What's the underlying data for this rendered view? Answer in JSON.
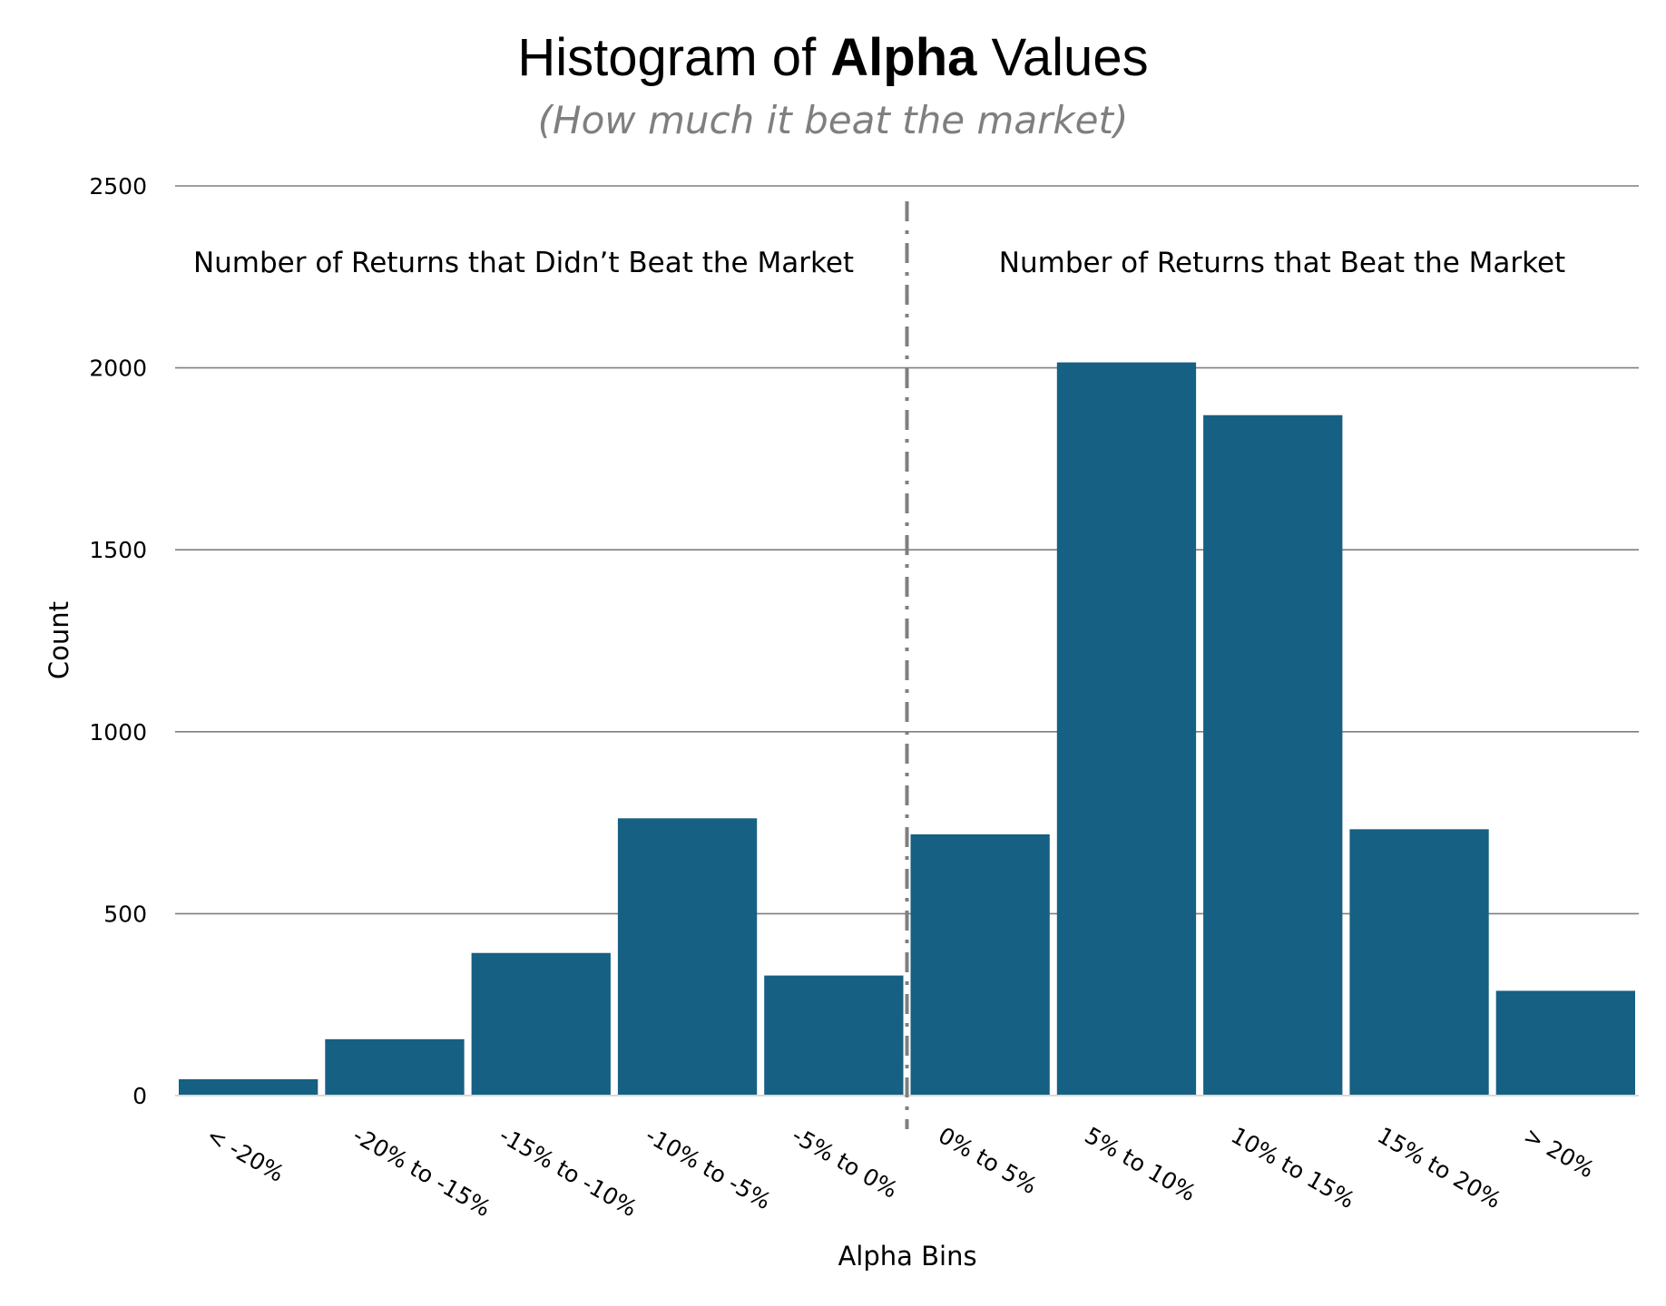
{
  "chart_data": {
    "type": "bar",
    "title_prefix": "Histogram of ",
    "title_bold": "Alpha",
    "title_suffix": " Values",
    "subtitle": "(How much it beat the market)",
    "xlabel": "Alpha Bins",
    "ylabel": "Count",
    "ylim": [
      0,
      2500
    ],
    "yticks": [
      0,
      500,
      1000,
      1500,
      2000,
      2500
    ],
    "grid": true,
    "categories": [
      "< -20%",
      "-20% to -15%",
      "-15% to -10%",
      "-10% to -5%",
      "-5% to 0%",
      "0% to 5%",
      "5% to 10%",
      "10% to 15%",
      "15% to 20%",
      "> 20%"
    ],
    "values": [
      45,
      155,
      392,
      762,
      330,
      718,
      2015,
      1870,
      732,
      288
    ],
    "bar_color": "#166083",
    "divider_after_category": "-5% to 0%",
    "annotations": {
      "left": "Number of Returns that Didn’t Beat the Market",
      "right": "Number of Returns that Beat the Market"
    }
  }
}
